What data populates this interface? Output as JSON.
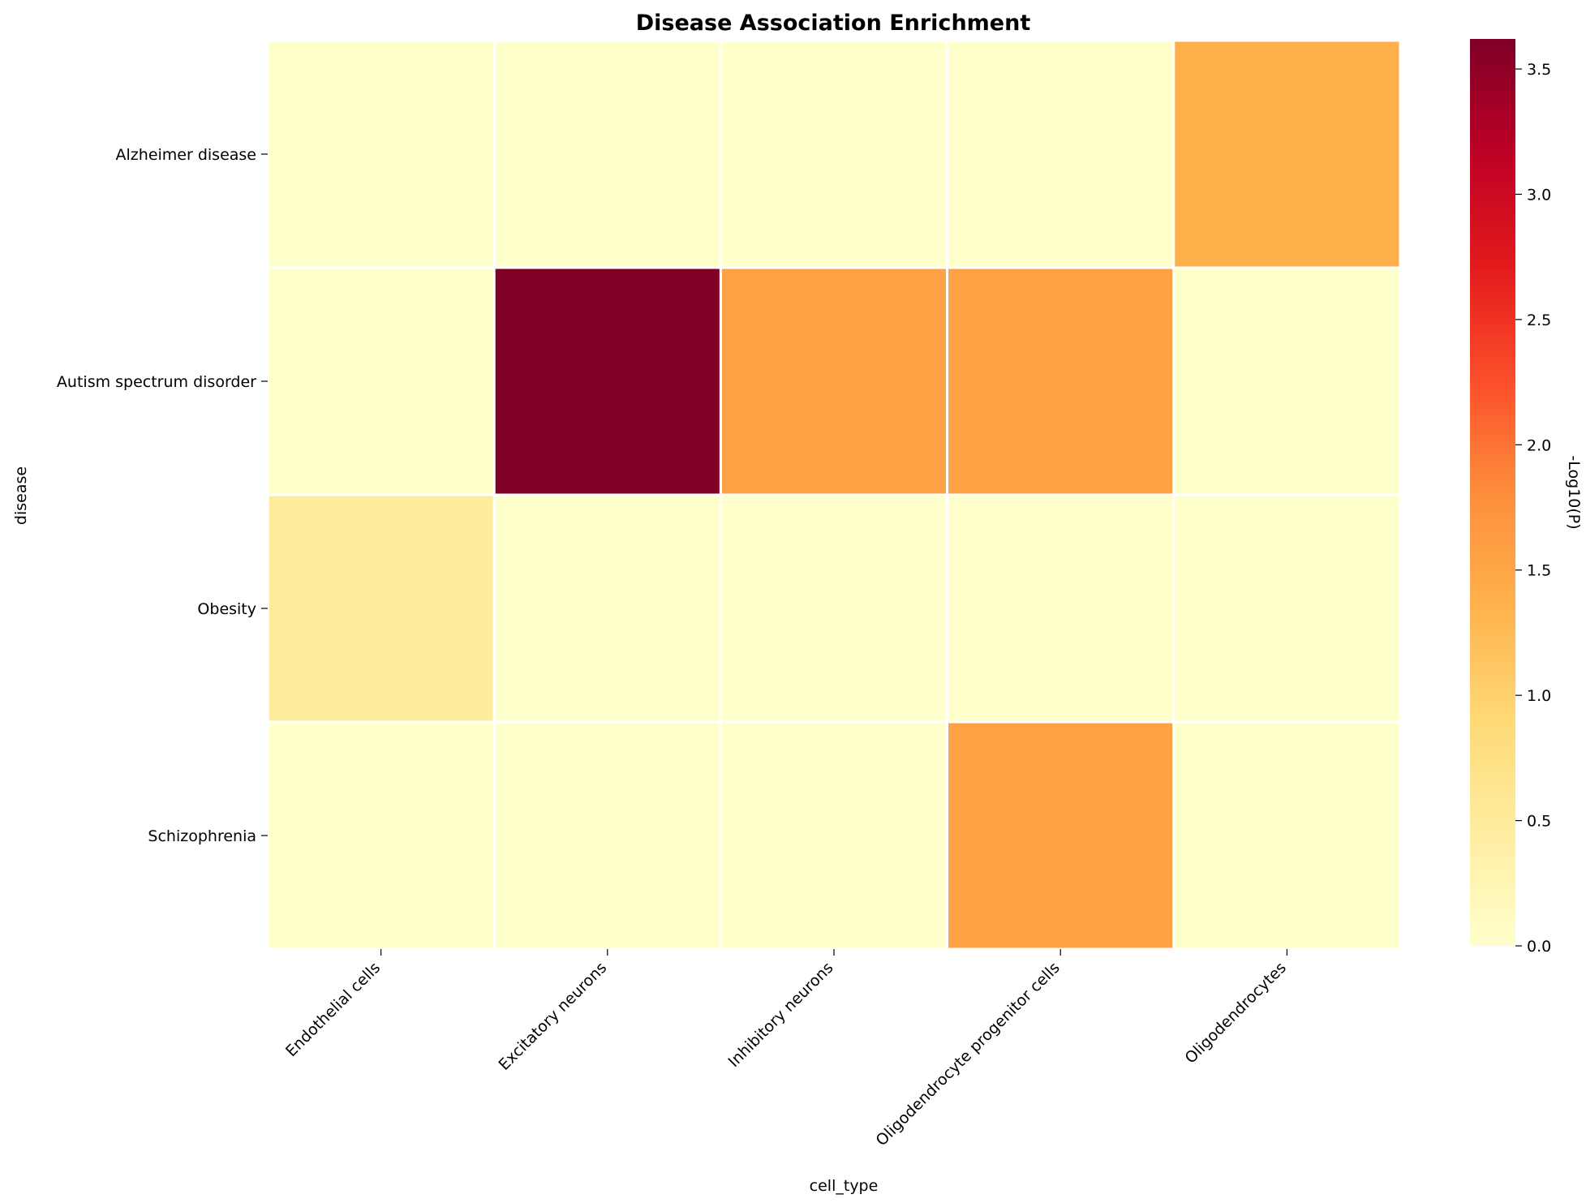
{
  "chart_data": {
    "type": "heatmap",
    "title": "Disease Association Enrichment",
    "xlabel": "cell_type",
    "ylabel": "disease",
    "x_categories": [
      "Endothelial cells",
      "Excitatory neurons",
      "Inhibitory neurons",
      "Oligodendrocyte progenitor cells",
      "Oligodendrocytes"
    ],
    "y_categories": [
      "Alzheimer disease",
      "Autism spectrum disorder",
      "Obesity",
      "Schizophrenia"
    ],
    "values": [
      [
        0.0,
        0.0,
        0.0,
        0.0,
        1.4
      ],
      [
        0.0,
        3.62,
        1.55,
        1.55,
        0.0
      ],
      [
        0.5,
        0.0,
        0.0,
        0.0,
        0.0
      ],
      [
        0.0,
        0.0,
        0.0,
        1.55,
        0.0
      ]
    ],
    "colorbar": {
      "label": "-Log10(P)",
      "range": [
        0,
        3.62
      ],
      "ticks": [
        "0.0",
        "0.5",
        "1.0",
        "1.5",
        "2.0",
        "2.5",
        "3.0",
        "3.5"
      ],
      "colormap": "YlOrRd"
    },
    "grid": false
  }
}
